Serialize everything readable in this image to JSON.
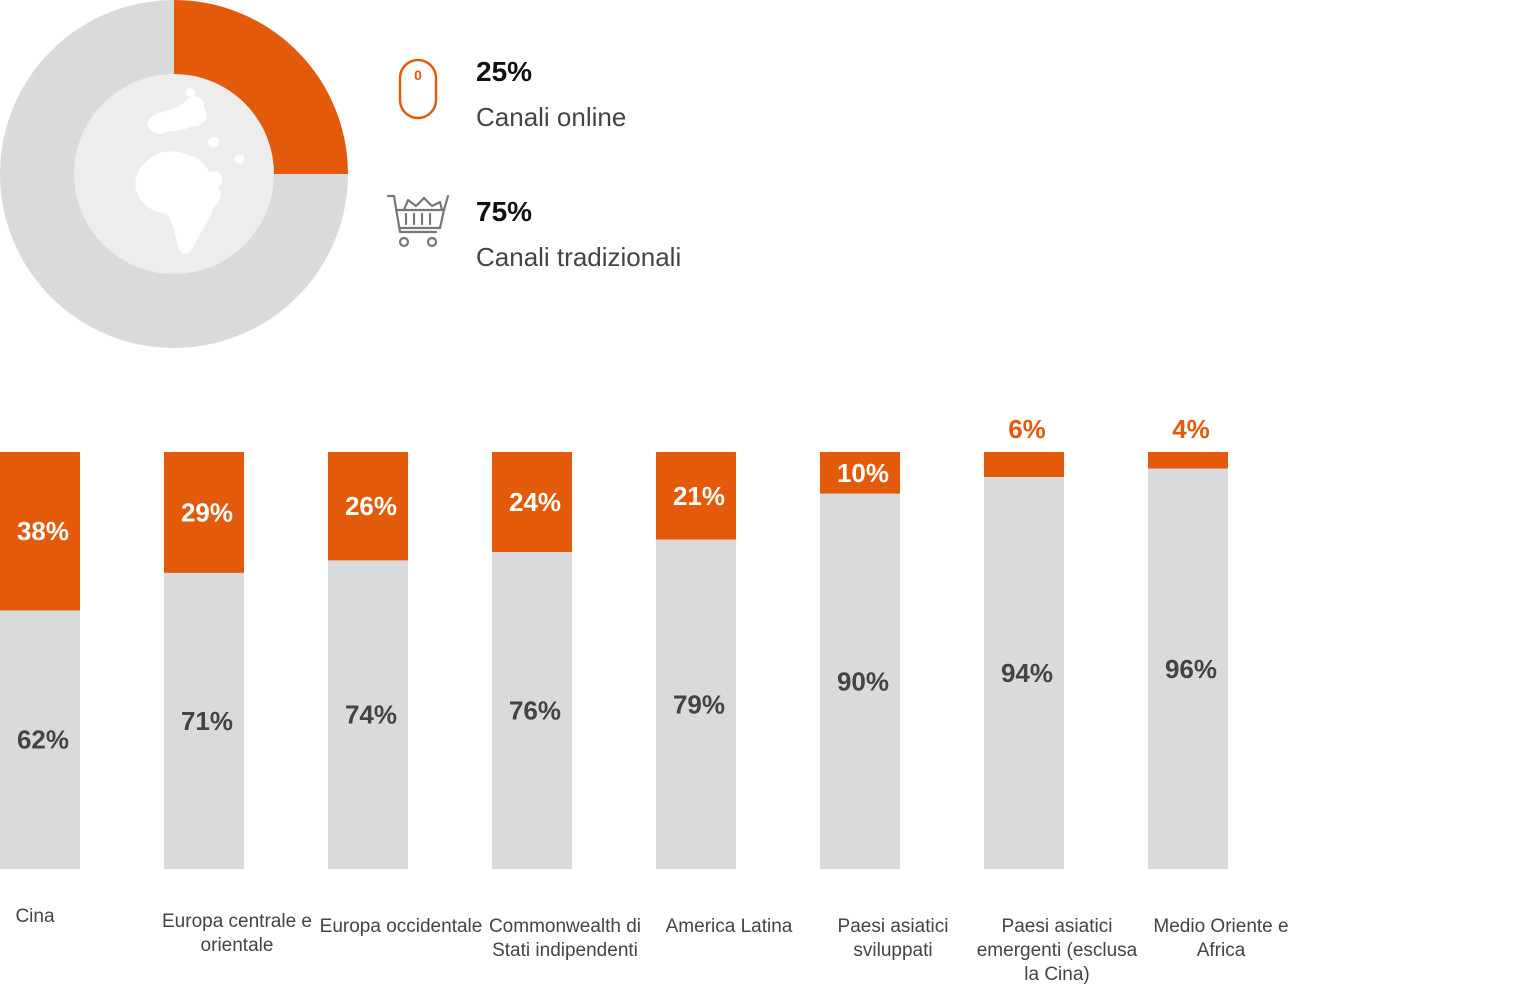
{
  "summary": {
    "online": {
      "pct": "25%",
      "label": "Canali online",
      "icon": "mouse-icon"
    },
    "traditional": {
      "pct": "75%",
      "label": "Canali tradizionali",
      "icon": "shopping-cart-icon"
    },
    "center_icon": "globe-icon"
  },
  "colors": {
    "online": "#E35A0A",
    "traditional": "#D9DADC",
    "globe": "#EDEDED"
  },
  "chart_data": [
    {
      "type": "pie",
      "categories": [
        "Canali online",
        "Canali tradizionali"
      ],
      "values": [
        25,
        75
      ],
      "labels": [
        "25%",
        "75%"
      ]
    },
    {
      "type": "bar",
      "stacked": true,
      "categories": [
        "Cina",
        "Europa centrale e orientale",
        "Europa occidentale",
        "Commonwealth di Stati indipendenti",
        "America Latina",
        "Paesi asiatici sviluppati",
        "Paesi asiatici emergenti (esclusa la Cina)",
        "Medio Oriente e Africa"
      ],
      "series": [
        {
          "values": [
            62,
            71,
            74,
            76,
            79,
            90,
            94,
            96
          ],
          "labels": [
            "62%",
            "71%",
            "74%",
            "76%",
            "79%",
            "90%",
            "94%",
            "96%"
          ]
        },
        {
          "values": [
            38,
            29,
            26,
            24,
            21,
            10,
            6,
            4
          ],
          "labels": [
            "38%",
            "29%",
            "26%",
            "24%",
            "21%",
            "10%",
            "6%",
            "4%"
          ]
        }
      ],
      "ylim": [
        0,
        100
      ]
    }
  ]
}
